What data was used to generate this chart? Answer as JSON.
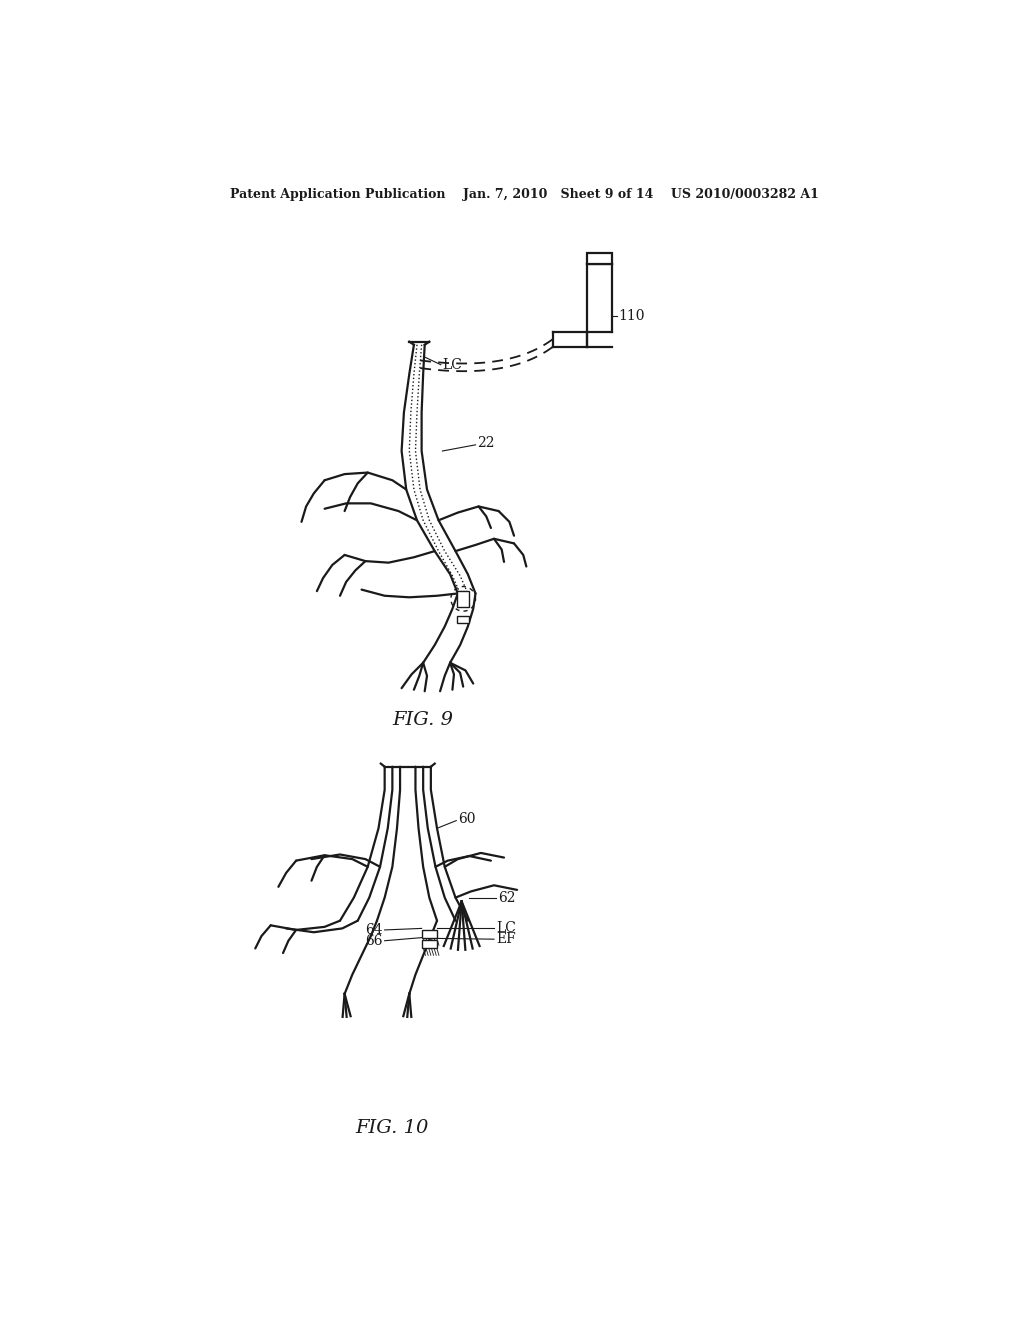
{
  "background_color": "#ffffff",
  "header_text": "Patent Application Publication    Jan. 7, 2010   Sheet 9 of 14    US 2010/0003282 A1",
  "fig9_label": "FIG. 9",
  "fig10_label": "FIG. 10",
  "line_color": "#1a1a1a",
  "lw": 1.6,
  "font_size": 11
}
